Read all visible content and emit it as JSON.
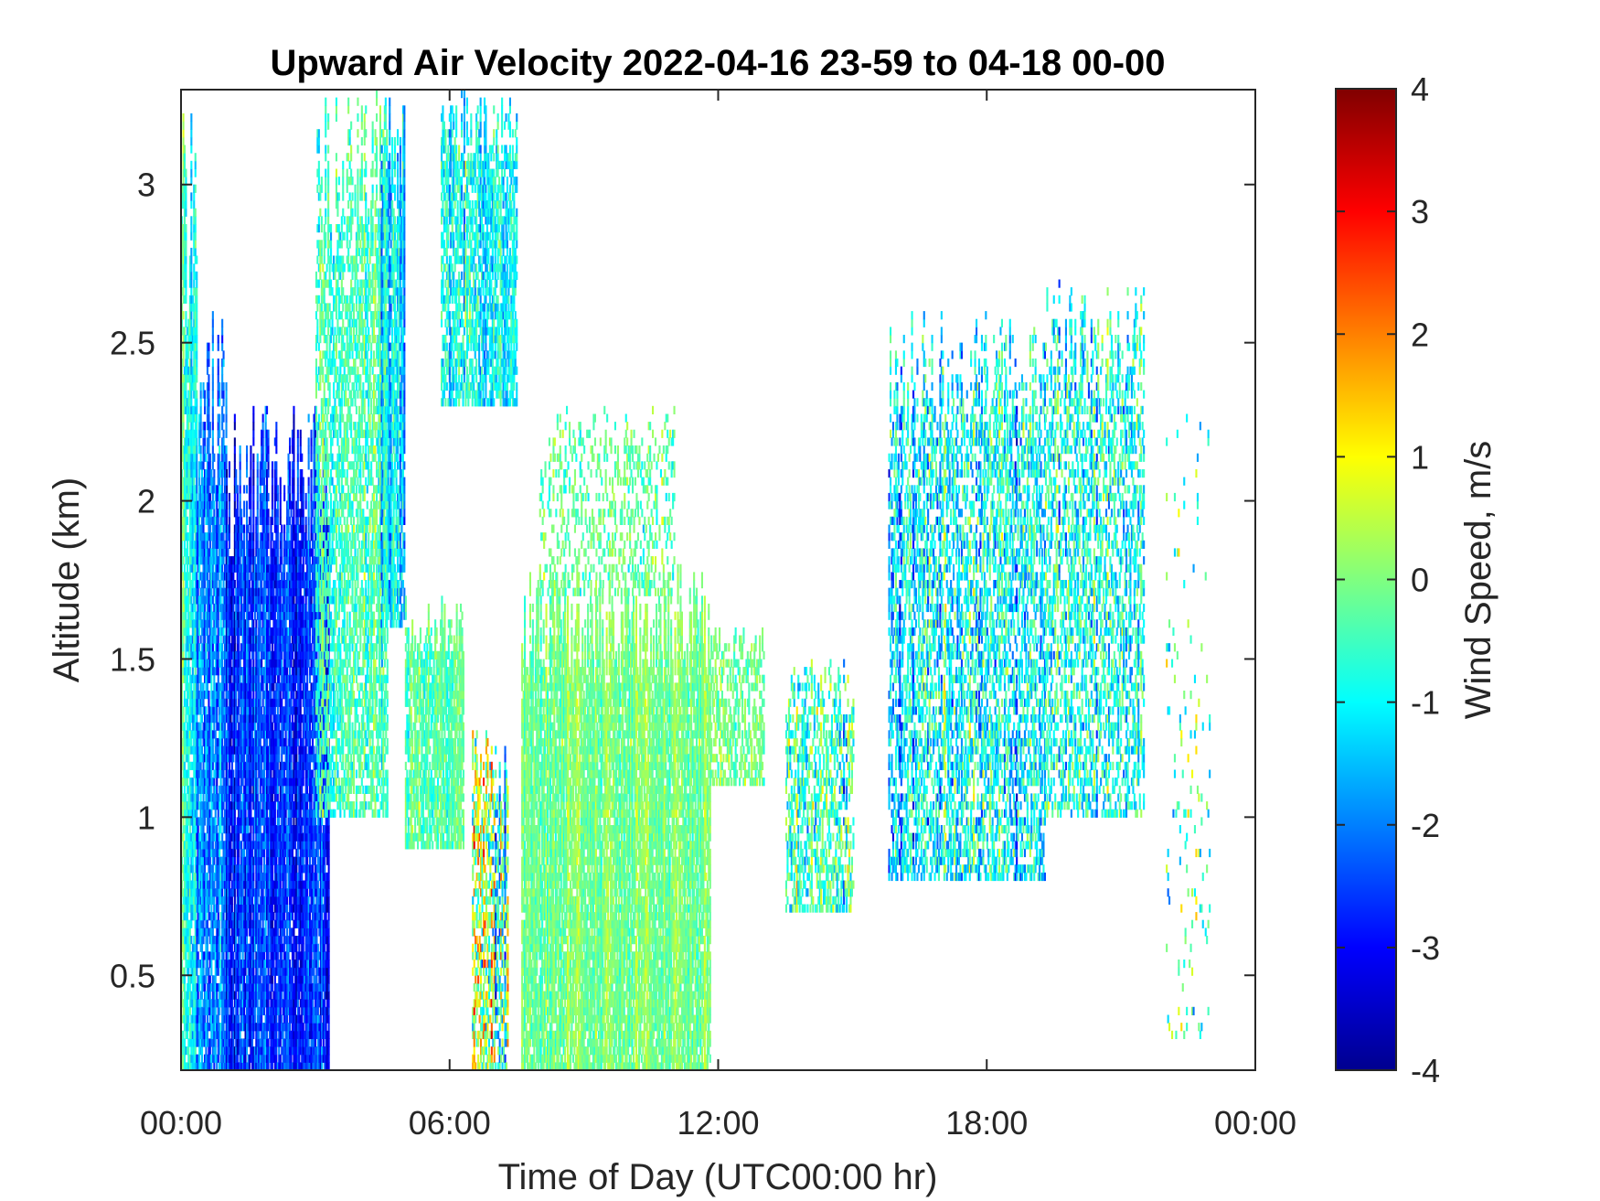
{
  "chart_data": {
    "type": "heatmap",
    "title": "Upward Air Velocity 2022-04-16 23-59 to 04-18 00-00",
    "xlabel": "Time of Day (UTC00:00 hr)",
    "ylabel": "Altitude (km)",
    "xlim_hours": [
      0,
      24
    ],
    "ylim": [
      0.2,
      3.3
    ],
    "x_ticks": [
      {
        "value": 0,
        "label": "00:00"
      },
      {
        "value": 6,
        "label": "06:00"
      },
      {
        "value": 12,
        "label": "12:00"
      },
      {
        "value": 18,
        "label": "18:00"
      },
      {
        "value": 24,
        "label": "00:00"
      }
    ],
    "y_ticks": [
      {
        "value": 0.5,
        "label": "0.5"
      },
      {
        "value": 1,
        "label": "1"
      },
      {
        "value": 1.5,
        "label": "1.5"
      },
      {
        "value": 2,
        "label": "2"
      },
      {
        "value": 2.5,
        "label": "2.5"
      },
      {
        "value": 3,
        "label": "3"
      }
    ],
    "colorbar": {
      "label": "Wind Speed, m/s",
      "range": [
        -4,
        4
      ],
      "colormap": "jet",
      "ticks": [
        {
          "value": 4,
          "label": "4"
        },
        {
          "value": 3,
          "label": "3"
        },
        {
          "value": 2,
          "label": "2"
        },
        {
          "value": 1,
          "label": "1"
        },
        {
          "value": 0,
          "label": "0"
        },
        {
          "value": -1,
          "label": "-1"
        },
        {
          "value": -2,
          "label": "-2"
        },
        {
          "value": -3,
          "label": "-3"
        },
        {
          "value": -4,
          "label": "-4"
        }
      ]
    },
    "regions": [
      {
        "t0": 0.0,
        "t1": 0.35,
        "z0": 0.2,
        "z1": 3.3,
        "mean": -0.6,
        "spread": 1.0,
        "density": 0.85
      },
      {
        "t0": 0.3,
        "t1": 1.0,
        "z0": 0.2,
        "z1": 2.6,
        "mean": -1.9,
        "spread": 1.0,
        "density": 0.85
      },
      {
        "t0": 1.0,
        "t1": 3.3,
        "z0": 0.2,
        "z1": 2.3,
        "mean": -2.7,
        "spread": 0.9,
        "density": 0.9
      },
      {
        "t0": 3.0,
        "t1": 4.6,
        "z0": 1.0,
        "z1": 3.3,
        "mean": -0.4,
        "spread": 0.9,
        "density": 0.6
      },
      {
        "t0": 4.4,
        "t1": 5.0,
        "z0": 1.6,
        "z1": 3.3,
        "mean": -1.2,
        "spread": 1.2,
        "density": 0.8
      },
      {
        "t0": 5.0,
        "t1": 6.3,
        "z0": 0.9,
        "z1": 1.7,
        "mean": -0.3,
        "spread": 0.7,
        "density": 0.8
      },
      {
        "t0": 5.8,
        "t1": 7.5,
        "z0": 2.3,
        "z1": 3.3,
        "mean": -0.9,
        "spread": 1.1,
        "density": 0.7
      },
      {
        "t0": 6.5,
        "t1": 7.3,
        "z0": 0.2,
        "z1": 1.3,
        "mean": 0.0,
        "spread": 2.6,
        "density": 0.6
      },
      {
        "t0": 7.6,
        "t1": 11.8,
        "z0": 0.2,
        "z1": 1.8,
        "mean": -0.1,
        "spread": 0.6,
        "density": 0.85
      },
      {
        "t0": 8.0,
        "t1": 11.0,
        "z0": 1.7,
        "z1": 2.3,
        "mean": -0.2,
        "spread": 0.8,
        "density": 0.25
      },
      {
        "t0": 11.8,
        "t1": 13.0,
        "z0": 1.1,
        "z1": 1.6,
        "mean": -0.2,
        "spread": 0.7,
        "density": 0.5
      },
      {
        "t0": 13.5,
        "t1": 15.0,
        "z0": 0.7,
        "z1": 1.5,
        "mean": -0.5,
        "spread": 1.5,
        "density": 0.5
      },
      {
        "t0": 15.8,
        "t1": 19.3,
        "z0": 0.8,
        "z1": 2.6,
        "mean": -0.9,
        "spread": 1.5,
        "density": 0.5
      },
      {
        "t0": 19.3,
        "t1": 21.5,
        "z0": 1.0,
        "z1": 2.7,
        "mean": -0.9,
        "spread": 1.4,
        "density": 0.45
      },
      {
        "t0": 22.0,
        "t1": 23.0,
        "z0": 0.3,
        "z1": 2.3,
        "mean": -0.5,
        "spread": 1.5,
        "density": 0.05
      }
    ]
  }
}
